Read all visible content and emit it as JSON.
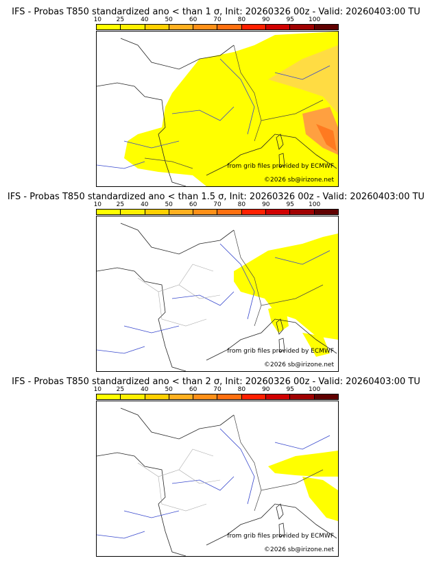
{
  "scale": {
    "labels": [
      "10",
      "25",
      "40",
      "50",
      "60",
      "70",
      "80",
      "90",
      "95",
      "100"
    ],
    "colors": [
      "#ffff00",
      "#fff000",
      "#ffd000",
      "#ffb020",
      "#ff9018",
      "#ff7010",
      "#ff2000",
      "#d00000",
      "#a00000",
      "#600000"
    ]
  },
  "panels": [
    {
      "title": "IFS - Probas T850  standardized ano < than 1 σ, Init: 20260326 00z - Valid: 20260403:00 TU",
      "credit": "from grib files provided by ECMWF",
      "copyright": "©2026 sb@irizone.net",
      "coverage": "wide"
    },
    {
      "title": "IFS - Probas T850  standardized ano < than 1.5 σ, Init: 20260326 00z - Valid: 20260403:00 TU",
      "credit": "from grib files provided by ECMWF",
      "copyright": "©2026 sb@irizone.net",
      "coverage": "medium"
    },
    {
      "title": "IFS - Probas T850  standardized ano < than 2 σ, Init: 20260326 00z - Valid: 20260403:00 TU",
      "credit": "from grib files provided by ECMWF",
      "copyright": "©2026 sb@irizone.net",
      "coverage": "small"
    }
  ]
}
